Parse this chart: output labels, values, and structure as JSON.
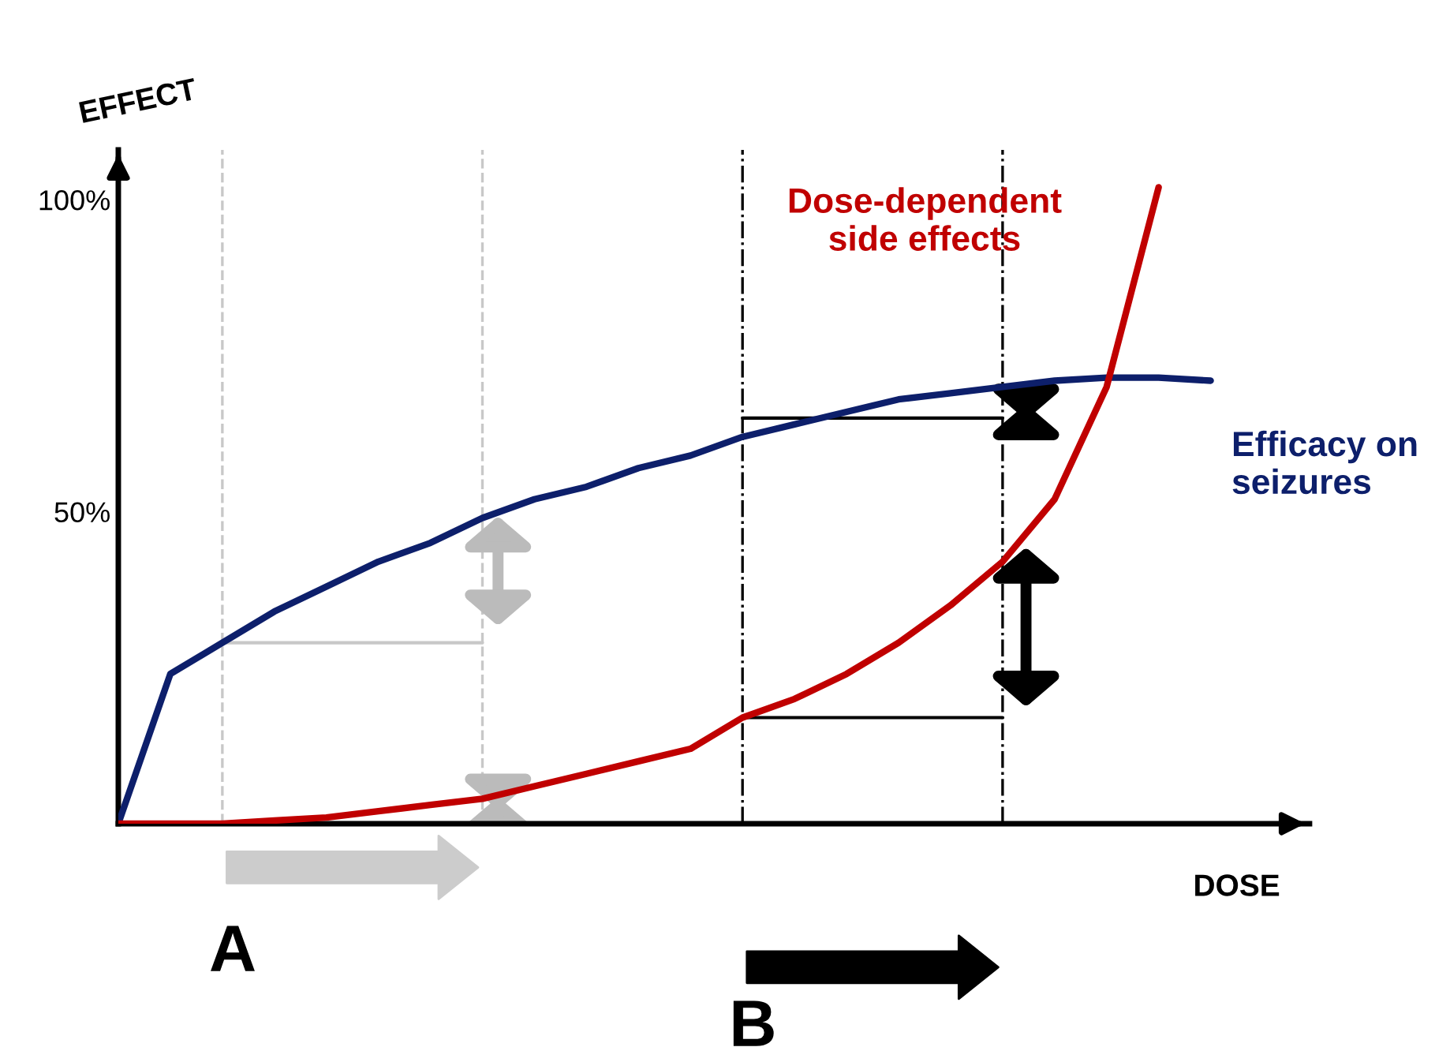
{
  "chart_data": {
    "type": "line",
    "ylabel": "EFFECT",
    "xlabel": "DOSE",
    "categories": [
      null,
      null,
      null,
      null,
      null,
      null,
      null,
      null,
      null,
      null,
      null,
      null,
      null,
      null,
      null,
      null,
      null,
      null,
      null,
      null,
      null,
      null
    ],
    "series": [
      {
        "name": "Efficacy on\nseizures",
        "color": "#0d1f6b",
        "values": [
          0,
          24,
          29,
          34,
          38,
          42,
          45,
          49,
          52,
          54,
          57,
          59,
          62,
          64,
          66,
          68,
          69,
          70,
          71,
          71.5,
          71.5,
          71
        ]
      },
      {
        "name": "Dose-dependent\nside effects",
        "color": "#c00000",
        "values": [
          0,
          0,
          0,
          0.5,
          1,
          2,
          3,
          4,
          6,
          8,
          10,
          12,
          17,
          20,
          24,
          29,
          35,
          42,
          52,
          70,
          102,
          null
        ]
      },
      {
        "color": "#c8c8c8",
        "values": [
          null,
          null,
          29,
          29,
          29,
          29,
          29,
          29,
          null,
          null,
          null,
          null,
          null,
          null,
          null,
          null,
          null,
          null,
          null,
          null,
          null,
          null
        ]
      },
      {
        "color": "#000000",
        "values": [
          null,
          null,
          null,
          null,
          null,
          null,
          null,
          null,
          null,
          null,
          null,
          null,
          65,
          65,
          65,
          65,
          65,
          65,
          null,
          null,
          null,
          null
        ]
      },
      {
        "color": "#000000",
        "values": [
          null,
          null,
          null,
          null,
          null,
          null,
          null,
          null,
          null,
          null,
          null,
          null,
          17,
          17,
          17,
          17,
          17,
          17,
          null,
          null,
          null,
          null
        ]
      }
    ],
    "ylim": [
      0,
      108
    ],
    "yticks": [
      {
        "value": 50,
        "label": "50%"
      },
      {
        "value": 100,
        "label": "100%"
      }
    ],
    "tick_labels": "y",
    "annotations": [
      "A",
      "B"
    ],
    "grid": false,
    "marker": "none",
    "line_style": "solid"
  }
}
